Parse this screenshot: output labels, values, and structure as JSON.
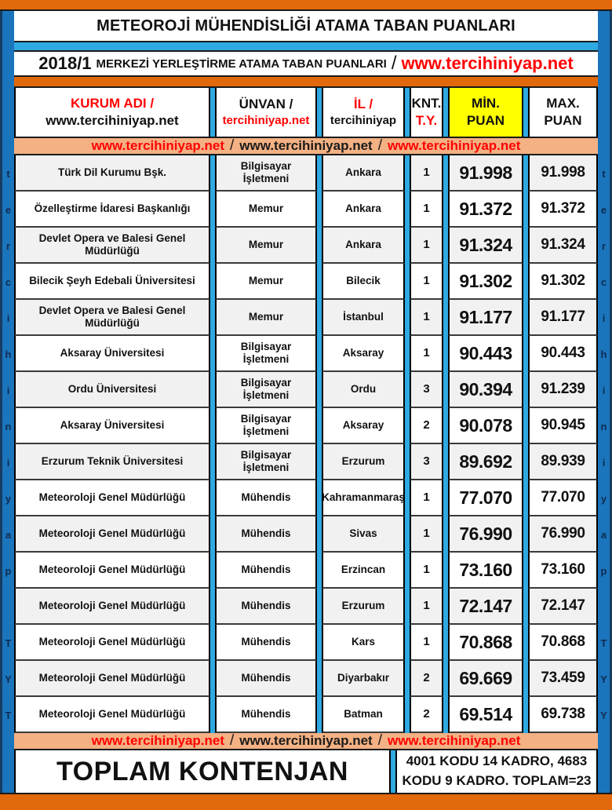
{
  "page": {
    "title": "METEOROJİ MÜHENDİSLİĞİ ATAMA TABAN PUANLARI",
    "subtitle": {
      "year": "2018/1",
      "text": "MERKEZİ YERLEŞTİRME ATAMA TABAN PUANLARI",
      "separator": "/",
      "url": "www.tercihiniyap.net"
    }
  },
  "url_strip": {
    "url1": "www.tercihiniyap.net",
    "sep1": "/",
    "url2": "www.tercihiniyap.net",
    "sep2": "/",
    "url3": "www.tercihiniyap.net"
  },
  "table": {
    "headers": {
      "kurum": {
        "line1": "KURUM ADI /",
        "line2": "www.tercihiniyap.net"
      },
      "unvan": {
        "line1": "ÜNVAN /",
        "line2": "tercihiniyap.net"
      },
      "il": {
        "line1": "İL /",
        "line2": "tercihiniyap"
      },
      "knt": {
        "line1": "KNT.",
        "line2": "T.Y."
      },
      "min": {
        "line1": "MİN.",
        "line2": "PUAN"
      },
      "max": {
        "line1": "MAX.",
        "line2": "PUAN"
      }
    },
    "rows": [
      {
        "kurum": "Türk Dil Kurumu Bşk.",
        "unvan": "Bilgisayar İşletmeni",
        "il": "Ankara",
        "knt": "1",
        "min": "91.998",
        "max": "91.998"
      },
      {
        "kurum": "Özelleştirme İdaresi Başkanlığı",
        "unvan": "Memur",
        "il": "Ankara",
        "knt": "1",
        "min": "91.372",
        "max": "91.372"
      },
      {
        "kurum": "Devlet Opera ve Balesi Genel Müdürlüğü",
        "unvan": "Memur",
        "il": "Ankara",
        "knt": "1",
        "min": "91.324",
        "max": "91.324"
      },
      {
        "kurum": "Bilecik Şeyh Edebali Üniversitesi",
        "unvan": "Memur",
        "il": "Bilecik",
        "knt": "1",
        "min": "91.302",
        "max": "91.302"
      },
      {
        "kurum": "Devlet Opera ve Balesi Genel Müdürlüğü",
        "unvan": "Memur",
        "il": "İstanbul",
        "knt": "1",
        "min": "91.177",
        "max": "91.177"
      },
      {
        "kurum": "Aksaray Üniversitesi",
        "unvan": "Bilgisayar İşletmeni",
        "il": "Aksaray",
        "knt": "1",
        "min": "90.443",
        "max": "90.443"
      },
      {
        "kurum": "Ordu Üniversitesi",
        "unvan": "Bilgisayar İşletmeni",
        "il": "Ordu",
        "knt": "3",
        "min": "90.394",
        "max": "91.239"
      },
      {
        "kurum": "Aksaray Üniversitesi",
        "unvan": "Bilgisayar İşletmeni",
        "il": "Aksaray",
        "knt": "2",
        "min": "90.078",
        "max": "90.945"
      },
      {
        "kurum": "Erzurum Teknik Üniversitesi",
        "unvan": "Bilgisayar İşletmeni",
        "il": "Erzurum",
        "knt": "3",
        "min": "89.692",
        "max": "89.939"
      },
      {
        "kurum": "Meteoroloji Genel Müdürlüğü",
        "unvan": "Mühendis",
        "il": "Kahramanmaraş",
        "knt": "1",
        "min": "77.070",
        "max": "77.070"
      },
      {
        "kurum": "Meteoroloji Genel Müdürlüğü",
        "unvan": "Mühendis",
        "il": "Sivas",
        "knt": "1",
        "min": "76.990",
        "max": "76.990"
      },
      {
        "kurum": "Meteoroloji Genel Müdürlüğü",
        "unvan": "Mühendis",
        "il": "Erzincan",
        "knt": "1",
        "min": "73.160",
        "max": "73.160"
      },
      {
        "kurum": "Meteoroloji Genel Müdürlüğü",
        "unvan": "Mühendis",
        "il": "Erzurum",
        "knt": "1",
        "min": "72.147",
        "max": "72.147"
      },
      {
        "kurum": "Meteoroloji Genel Müdürlüğü",
        "unvan": "Mühendis",
        "il": "Kars",
        "knt": "1",
        "min": "70.868",
        "max": "70.868"
      },
      {
        "kurum": "Meteoroloji Genel Müdürlüğü",
        "unvan": "Mühendis",
        "il": "Diyarbakır",
        "knt": "2",
        "min": "69.669",
        "max": "73.459"
      },
      {
        "kurum": "Meteoroloji Genel Müdürlüğü",
        "unvan": "Mühendis",
        "il": "Batman",
        "knt": "2",
        "min": "69.514",
        "max": "69.738"
      }
    ]
  },
  "side_letters": {
    "left": [
      "t",
      "e",
      "r",
      "c",
      "i",
      "h",
      "i",
      "n",
      "i",
      "y",
      "a",
      "p",
      "",
      "T",
      "Y",
      "T"
    ],
    "right": [
      "t",
      "e",
      "r",
      "c",
      "i",
      "h",
      "i",
      "n",
      "i",
      "y",
      "a",
      "p",
      "",
      "T",
      "Y",
      "Y"
    ]
  },
  "footer": {
    "left": "TOPLAM KONTENJAN",
    "right": "4001 KODU 14 KADRO, 4683 KODU 9 KADRO. TOPLAM=23"
  },
  "colors": {
    "orange": "#E2690B",
    "peach": "#F4B183",
    "cyan": "#2FA9E1",
    "side_blue": "#1B75BC",
    "navy_edge": "#173C63",
    "highlight_yellow": "#FFFF00",
    "link_red": "#FF0000",
    "alt_row_gray": "#F1F1F1"
  }
}
